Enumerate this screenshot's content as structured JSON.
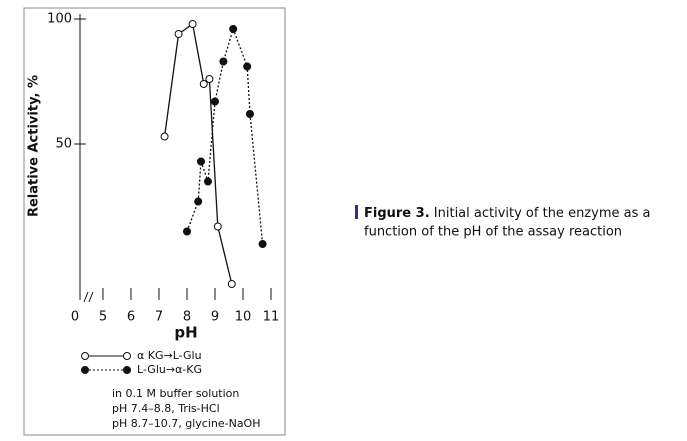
{
  "chart_data": {
    "type": "line",
    "y_label": "Relative Activity, %",
    "x_label": "pH",
    "axis_break_label": "0",
    "xlim": [
      4.18,
      11.5
    ],
    "xticks": [
      5,
      6,
      7,
      8,
      9,
      10,
      11
    ],
    "ylim": [
      -12.4,
      102
    ],
    "yticks": [
      50,
      100
    ],
    "series": [
      {
        "name": "α KG→L-Glu",
        "color": "#111111",
        "marker": "open",
        "dash": "solid",
        "x": [
          7.2,
          7.7,
          8.2,
          8.6,
          8.8,
          9.1,
          9.6
        ],
        "values": [
          53,
          94,
          98,
          74,
          76,
          17,
          -6
        ]
      },
      {
        "name": "L-Glu→α-KG",
        "color": "#111111",
        "marker": "filled",
        "dash": "dotted",
        "x": [
          8.0,
          8.4,
          8.5,
          8.75,
          9.0,
          9.3,
          9.65,
          10.15,
          10.25,
          10.7
        ],
        "values": [
          15,
          27,
          43,
          35,
          67,
          83,
          96,
          81,
          62,
          10
        ]
      }
    ],
    "notes": [
      "in 0.1 M buffer solution",
      "pH 7.4–8.8, Tris-HCl",
      "pH 8.7–10.7, glycine-NaOH"
    ],
    "caption_label": "Figure 3.",
    "caption_text": [
      "Initial activity of the enzyme as a",
      "function of the pH of the assay reaction"
    ]
  }
}
